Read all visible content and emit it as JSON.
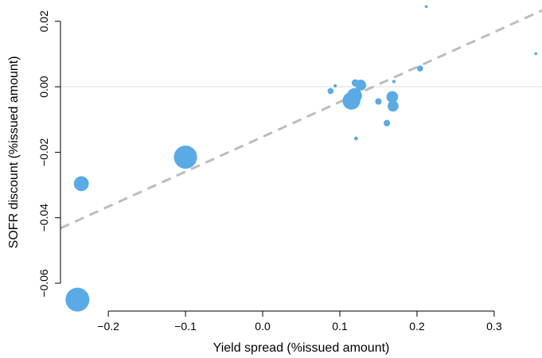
{
  "chart_data": {
    "type": "scatter",
    "title": "",
    "xlabel": "Yield spread (%issued amount)",
    "ylabel": "SOFR discount (%issued amount)",
    "xlim": [
      -0.262,
      0.362
    ],
    "ylim": [
      -0.0685,
      0.0265
    ],
    "xticks": [
      -0.2,
      -0.1,
      0.0,
      0.1,
      0.2,
      0.3
    ],
    "xtick_labels": [
      "−0.2",
      "−0.1",
      "0.0",
      "0.1",
      "0.2",
      "0.3"
    ],
    "yticks": [
      -0.06,
      -0.04,
      -0.02,
      0.0,
      0.02
    ],
    "ytick_labels": [
      "−0.06",
      "−0.04",
      "−0.02",
      "0.00",
      "0.02"
    ],
    "points": [
      {
        "x": -0.24,
        "y": -0.065,
        "size": 1.0
      },
      {
        "x": -0.1,
        "y": -0.0215,
        "size": 0.97
      },
      {
        "x": -0.235,
        "y": -0.0296,
        "size": 0.6
      },
      {
        "x": 0.115,
        "y": -0.0043,
        "size": 0.72
      },
      {
        "x": 0.119,
        "y": -0.0027,
        "size": 0.6
      },
      {
        "x": 0.127,
        "y": 0.0005,
        "size": 0.42
      },
      {
        "x": 0.168,
        "y": -0.0031,
        "size": 0.45
      },
      {
        "x": 0.169,
        "y": -0.0059,
        "size": 0.42
      },
      {
        "x": 0.12,
        "y": 0.0012,
        "size": 0.25
      },
      {
        "x": 0.088,
        "y": -0.0013,
        "size": 0.2
      },
      {
        "x": 0.15,
        "y": -0.0045,
        "size": 0.22
      },
      {
        "x": 0.161,
        "y": -0.0111,
        "size": 0.22
      },
      {
        "x": 0.204,
        "y": 0.0056,
        "size": 0.2
      },
      {
        "x": 0.094,
        "y": 0.0003,
        "size": 0.08
      },
      {
        "x": 0.121,
        "y": -0.0158,
        "size": 0.1
      },
      {
        "x": 0.17,
        "y": 0.0016,
        "size": 0.08
      },
      {
        "x": 0.212,
        "y": 0.0245,
        "size": 0.06
      },
      {
        "x": 0.354,
        "y": 0.0101,
        "size": 0.06
      }
    ],
    "fit_line": {
      "x1": -0.262,
      "y1": -0.0432,
      "x2": 0.362,
      "y2": 0.0233,
      "style": "dashed"
    },
    "reference_line_y": 0.0,
    "grid": false,
    "legend": "none",
    "colors": {
      "points": "#5aaae6",
      "fit_line": "#bdbdbd",
      "reference_line": "#e2e2e2",
      "axis": "#000000"
    }
  }
}
